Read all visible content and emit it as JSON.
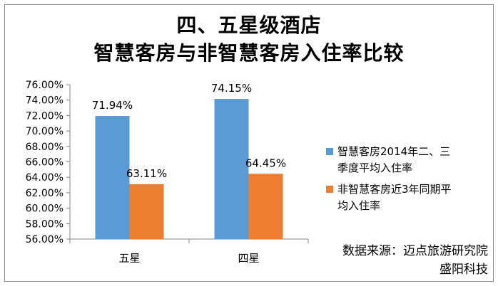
{
  "title_line1": "四、五星级酒店",
  "title_line2": "智慧客房与非智慧客房入住率比较",
  "source_line1": "数据来源：迈点旅游研究院",
  "source_line2": "盛阳科技",
  "chart_data": {
    "type": "bar",
    "title": "四、五星级酒店 智慧客房与非智慧客房入住率比较",
    "categories": [
      "五星",
      "四星"
    ],
    "series": [
      {
        "name": "智慧客房2014年二、三季度平均入住率",
        "values": [
          71.94,
          74.15
        ],
        "labels": [
          "71.94%",
          "74.15%"
        ],
        "color": "#5b9bd5"
      },
      {
        "name": "非智慧客房近3年同期平均入住率",
        "values": [
          63.11,
          64.45
        ],
        "labels": [
          "63.11%",
          "64.45%"
        ],
        "color": "#ed7d31"
      }
    ],
    "ylim": [
      56,
      76
    ],
    "ytick_labels": [
      "56.00%",
      "58.00%",
      "60.00%",
      "62.00%",
      "64.00%",
      "66.00%",
      "68.00%",
      "70.00%",
      "72.00%",
      "74.00%",
      "76.00%"
    ],
    "legend_lines": [
      [
        "智慧客房2014年二、三",
        "季度平均入住率"
      ],
      [
        "非智慧客房近3年同期平",
        "均入住率"
      ]
    ],
    "legend_position": "right",
    "grid": false
  }
}
